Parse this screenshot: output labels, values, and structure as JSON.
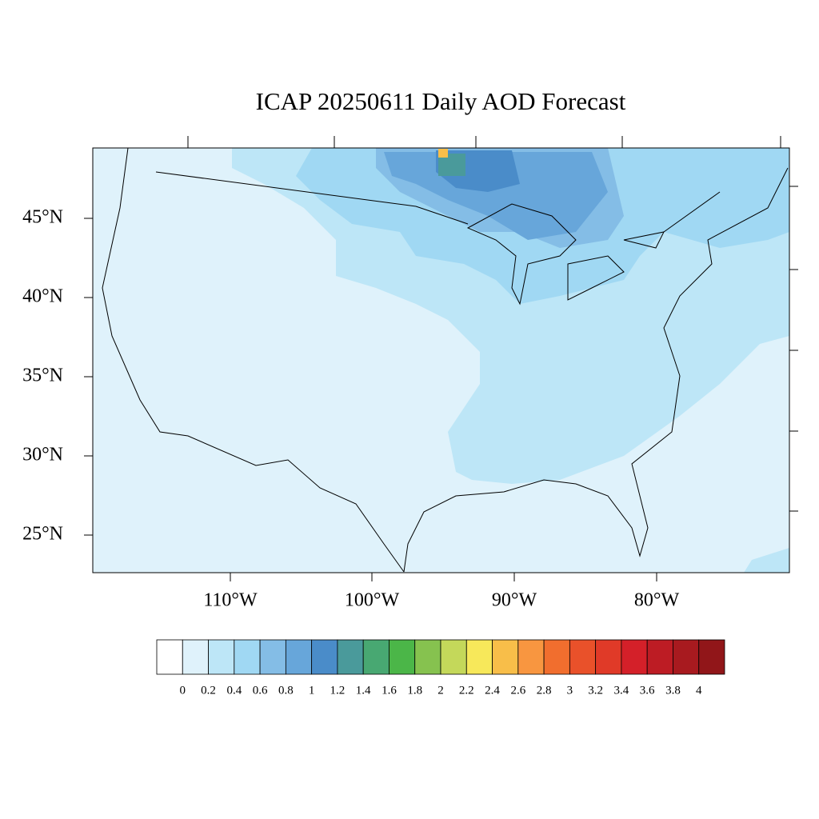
{
  "title": "ICAP 20250611 Daily AOD Forecast",
  "lat_labels": [
    "45°N",
    "40°N",
    "35°N",
    "30°N",
    "25°N"
  ],
  "lon_labels": [
    "110°W",
    "100°W",
    "90°W",
    "80°W"
  ],
  "colorbar": {
    "levels": [
      0,
      0.2,
      0.4,
      0.6,
      0.8,
      1,
      1.2,
      1.4,
      1.6,
      1.8,
      2,
      2.2,
      2.4,
      2.6,
      2.8,
      3,
      3.2,
      3.4,
      3.6,
      3.8,
      4
    ],
    "colors": [
      "#ffffff",
      "#dff2fb",
      "#bde6f7",
      "#a0d8f3",
      "#84bde6",
      "#67a6da",
      "#4a8cc9",
      "#4a9a9b",
      "#48a872",
      "#4bb648",
      "#86c24f",
      "#c4d85a",
      "#f7e85a",
      "#f8be49",
      "#f89640",
      "#f16e2e",
      "#e9512a",
      "#e03a28",
      "#d42029",
      "#bd1c24",
      "#a81a1f",
      "#911619"
    ]
  }
}
